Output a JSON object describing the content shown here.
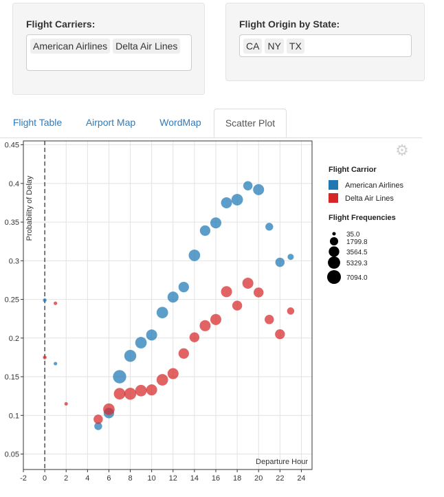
{
  "filters": {
    "carriers": {
      "title": "Flight Carriers:",
      "selected": [
        "American Airlines",
        "Delta Air Lines"
      ]
    },
    "states": {
      "title": "Flight Origin by State:",
      "selected": [
        "CA",
        "NY",
        "TX"
      ]
    }
  },
  "tabs": [
    {
      "label": "Flight Table",
      "active": false
    },
    {
      "label": "Airport Map",
      "active": false
    },
    {
      "label": "WordMap",
      "active": false
    },
    {
      "label": "Scatter Plot",
      "active": true
    }
  ],
  "toolbar": {
    "settings_icon": "gear-icon"
  },
  "chart_data": {
    "type": "scatter",
    "xlabel": "Departure Hour",
    "ylabel": "Probability of Delay",
    "xlim": [
      -2,
      25
    ],
    "ylim": [
      0.03,
      0.455
    ],
    "x_ticks": [
      -2,
      0,
      2,
      4,
      6,
      8,
      10,
      12,
      14,
      16,
      18,
      20,
      22,
      24
    ],
    "y_ticks": [
      0.05,
      0.1,
      0.15,
      0.2,
      0.25,
      0.3,
      0.35,
      0.4,
      0.45
    ],
    "y_tick_labels": [
      "0.05",
      "0.1",
      "0.15",
      "0.2",
      "0.25",
      "0.3",
      "0.35",
      "0.4",
      "0.45"
    ],
    "reference_line_x": 0,
    "grid": true,
    "legend_placement": "right",
    "legend_title": "Flight Carrior",
    "size_legend_title": "Flight Frequencies",
    "size_legend": [
      35.0,
      1799.8,
      3564.5,
      5329.3,
      7094.0
    ],
    "size_legend_labels": [
      "35.0",
      "1799.8",
      "3564.5",
      "5329.3",
      "7094.0"
    ],
    "series": [
      {
        "name": "American Airlines",
        "color": "#1f77b4",
        "points": [
          {
            "x": 0,
            "y": 0.249,
            "size": 60
          },
          {
            "x": 1,
            "y": 0.167,
            "size": 40
          },
          {
            "x": 5,
            "y": 0.086,
            "size": 1500
          },
          {
            "x": 6,
            "y": 0.103,
            "size": 3500
          },
          {
            "x": 7,
            "y": 0.15,
            "size": 6500
          },
          {
            "x": 8,
            "y": 0.177,
            "size": 5000
          },
          {
            "x": 9,
            "y": 0.194,
            "size": 4500
          },
          {
            "x": 10,
            "y": 0.204,
            "size": 4000
          },
          {
            "x": 11,
            "y": 0.233,
            "size": 4500
          },
          {
            "x": 12,
            "y": 0.253,
            "size": 4000
          },
          {
            "x": 13,
            "y": 0.266,
            "size": 3500
          },
          {
            "x": 14,
            "y": 0.307,
            "size": 4500
          },
          {
            "x": 15,
            "y": 0.339,
            "size": 3500
          },
          {
            "x": 16,
            "y": 0.349,
            "size": 4000
          },
          {
            "x": 17,
            "y": 0.375,
            "size": 4000
          },
          {
            "x": 18,
            "y": 0.379,
            "size": 4500
          },
          {
            "x": 19,
            "y": 0.397,
            "size": 2500
          },
          {
            "x": 20,
            "y": 0.392,
            "size": 4000
          },
          {
            "x": 21,
            "y": 0.344,
            "size": 1500
          },
          {
            "x": 22,
            "y": 0.298,
            "size": 2500
          },
          {
            "x": 23,
            "y": 0.305,
            "size": 700
          }
        ]
      },
      {
        "name": "Delta Air Lines",
        "color": "#d62728",
        "points": [
          {
            "x": 0,
            "y": 0.175,
            "size": 60
          },
          {
            "x": 1,
            "y": 0.245,
            "size": 40
          },
          {
            "x": 2,
            "y": 0.115,
            "size": 35
          },
          {
            "x": 5,
            "y": 0.095,
            "size": 2500
          },
          {
            "x": 6,
            "y": 0.108,
            "size": 4500
          },
          {
            "x": 7,
            "y": 0.128,
            "size": 4500
          },
          {
            "x": 8,
            "y": 0.128,
            "size": 5000
          },
          {
            "x": 9,
            "y": 0.132,
            "size": 4500
          },
          {
            "x": 10,
            "y": 0.133,
            "size": 4000
          },
          {
            "x": 11,
            "y": 0.146,
            "size": 4500
          },
          {
            "x": 12,
            "y": 0.154,
            "size": 4000
          },
          {
            "x": 13,
            "y": 0.18,
            "size": 3500
          },
          {
            "x": 14,
            "y": 0.201,
            "size": 3000
          },
          {
            "x": 15,
            "y": 0.216,
            "size": 4000
          },
          {
            "x": 16,
            "y": 0.224,
            "size": 4000
          },
          {
            "x": 17,
            "y": 0.26,
            "size": 4000
          },
          {
            "x": 18,
            "y": 0.242,
            "size": 3000
          },
          {
            "x": 19,
            "y": 0.271,
            "size": 4000
          },
          {
            "x": 20,
            "y": 0.259,
            "size": 3000
          },
          {
            "x": 21,
            "y": 0.224,
            "size": 2500
          },
          {
            "x": 22,
            "y": 0.205,
            "size": 3000
          },
          {
            "x": 23,
            "y": 0.235,
            "size": 1200
          }
        ]
      }
    ]
  }
}
